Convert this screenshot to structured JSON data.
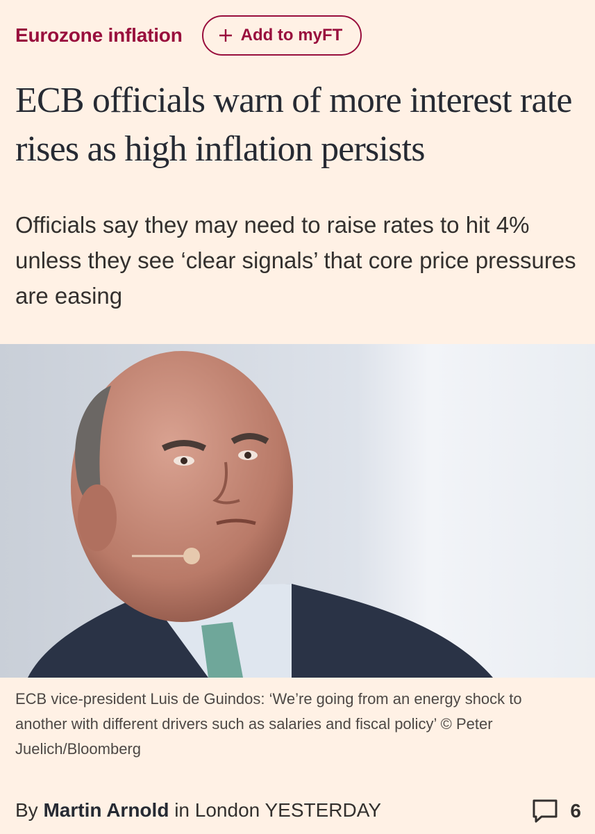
{
  "topic": "Eurozone inflation",
  "follow_button": "Add to myFT",
  "headline": "ECB officials warn of more interest rate rises as high inflation persists",
  "standfirst": "Officials say they may need to raise rates to hit 4% unless they see ‘clear signals’ that core price pressures are easing",
  "image": {
    "caption": "ECB vice-president Luis de Guindos: ‘We’re going from an energy shock to another with different drivers such as salaries and fiscal policy’ © Peter Juelich/Bloomberg"
  },
  "byline": {
    "prefix": "By",
    "author": "Martin Arnold",
    "location": "in London",
    "time": "YESTERDAY",
    "comment_count": 6
  }
}
